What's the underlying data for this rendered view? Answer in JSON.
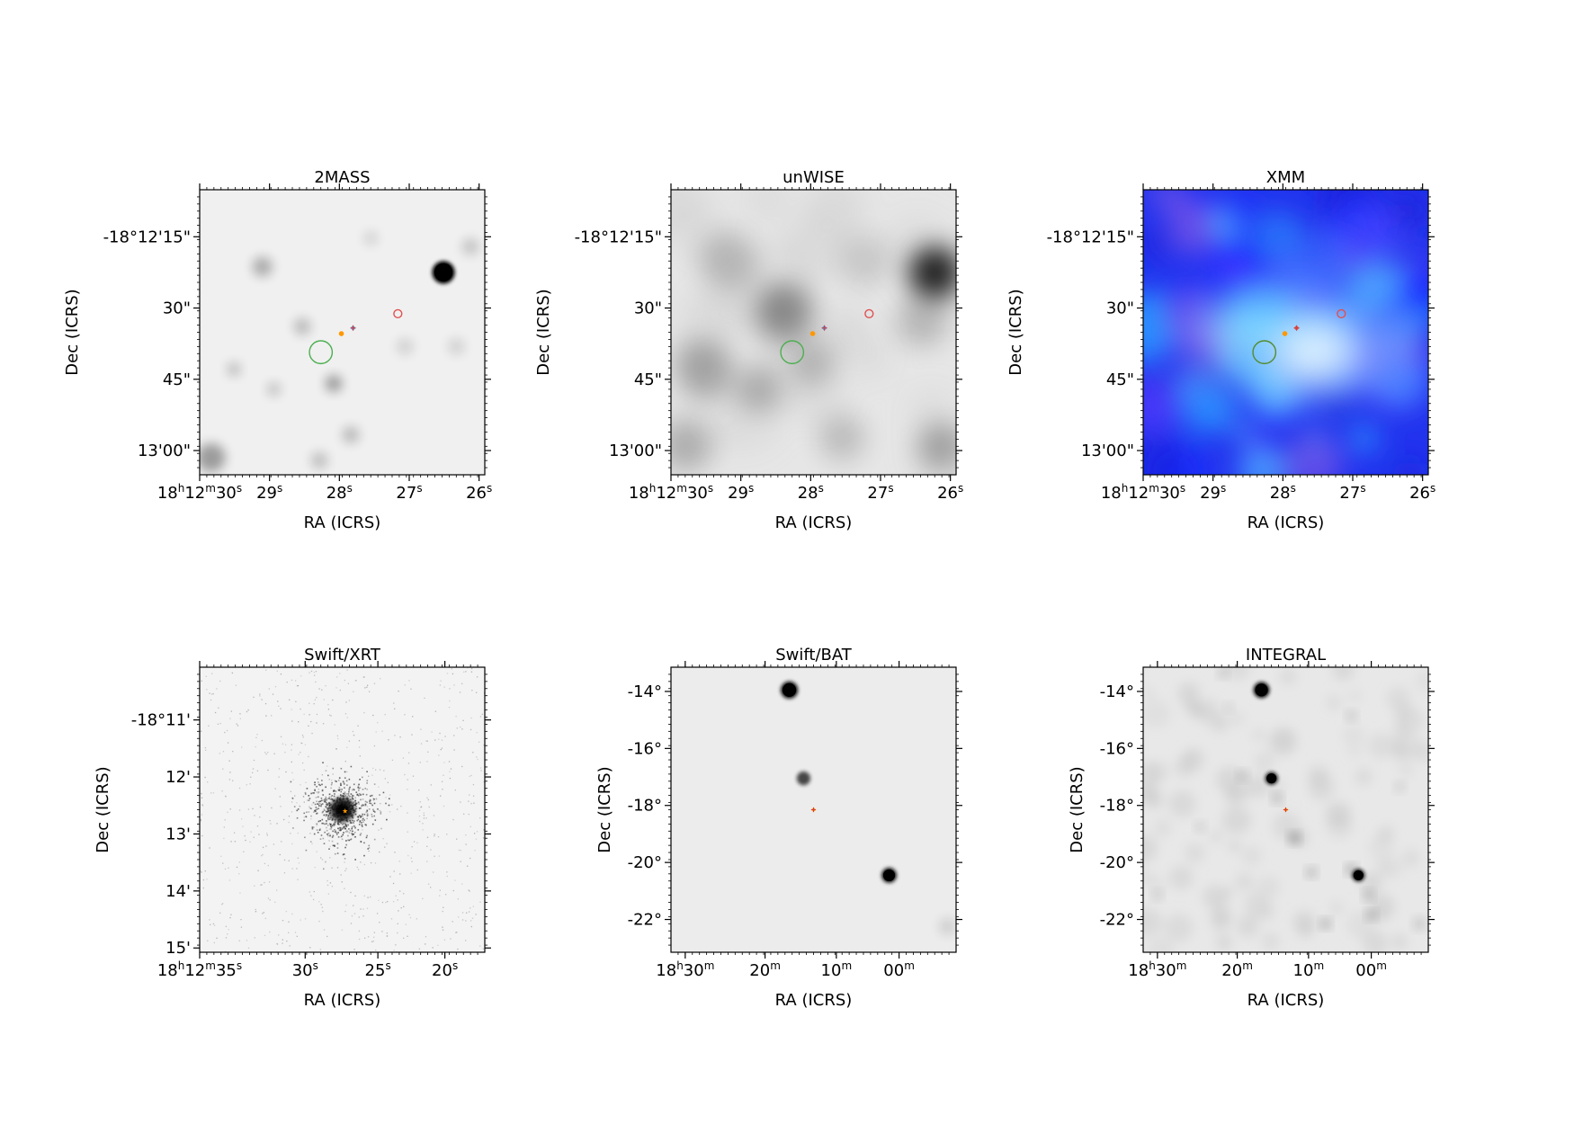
{
  "figure": {
    "panels": [
      {
        "id": "2mass",
        "title": "2MASS",
        "style": "gray",
        "xlabel": "RA (ICRS)",
        "ylabel": "Dec (ICRS)",
        "xticks": [
          {
            "f": 0.0,
            "main": "18",
            "parts": [
              [
                "h",
                "12"
              ],
              [
                "m",
                "30"
              ],
              [
                "s",
                ""
              ]
            ]
          },
          {
            "f": 0.245,
            "main": "29",
            "parts": [
              [
                "s",
                ""
              ]
            ]
          },
          {
            "f": 0.49,
            "main": "28",
            "parts": [
              [
                "s",
                ""
              ]
            ]
          },
          {
            "f": 0.735,
            "main": "27",
            "parts": [
              [
                "s",
                ""
              ]
            ]
          },
          {
            "f": 0.98,
            "main": "26",
            "parts": [
              [
                "s",
                ""
              ]
            ]
          }
        ],
        "yticks": [
          {
            "f": 0.165,
            "label": "-18°12'15\""
          },
          {
            "f": 0.415,
            "label": "30\""
          },
          {
            "f": 0.665,
            "label": "45\""
          },
          {
            "f": 0.915,
            "label": "13'00\""
          }
        ],
        "sources": [
          {
            "x": 0.855,
            "y": 0.29,
            "r": 0.04,
            "a": 1.0
          },
          {
            "x": 0.22,
            "y": 0.27,
            "r": 0.035,
            "a": 0.28
          },
          {
            "x": 0.47,
            "y": 0.68,
            "r": 0.03,
            "a": 0.35
          },
          {
            "x": 0.04,
            "y": 0.94,
            "r": 0.05,
            "a": 0.35
          },
          {
            "x": 0.36,
            "y": 0.48,
            "r": 0.03,
            "a": 0.22
          },
          {
            "x": 0.53,
            "y": 0.86,
            "r": 0.03,
            "a": 0.22
          },
          {
            "x": 0.42,
            "y": 0.95,
            "r": 0.03,
            "a": 0.2
          },
          {
            "x": 0.12,
            "y": 0.63,
            "r": 0.025,
            "a": 0.2
          },
          {
            "x": 0.26,
            "y": 0.7,
            "r": 0.025,
            "a": 0.18
          },
          {
            "x": 0.72,
            "y": 0.55,
            "r": 0.03,
            "a": 0.12
          },
          {
            "x": 0.95,
            "y": 0.2,
            "r": 0.03,
            "a": 0.18
          },
          {
            "x": 0.6,
            "y": 0.17,
            "r": 0.025,
            "a": 0.12
          },
          {
            "x": 0.9,
            "y": 0.55,
            "r": 0.03,
            "a": 0.12
          }
        ],
        "markers": [
          {
            "type": "ring",
            "color": "#4caf50",
            "x": 0.425,
            "y": 0.57,
            "r": 0.04
          },
          {
            "type": "dot",
            "color": "#ff9800",
            "x": 0.497,
            "y": 0.505,
            "r": 0.016
          },
          {
            "type": "diamond",
            "color": "#5c8fd6",
            "x": 0.538,
            "y": 0.485,
            "r": 0.016
          },
          {
            "type": "ring",
            "color": "#e05050",
            "x": 0.695,
            "y": 0.435,
            "r": 0.014
          }
        ]
      },
      {
        "id": "unwise",
        "title": "unWISE",
        "style": "gray-dense",
        "xlabel": "RA (ICRS)",
        "ylabel": "Dec (ICRS)",
        "xticks": [
          {
            "f": 0.0,
            "main": "18",
            "parts": [
              [
                "h",
                "12"
              ],
              [
                "m",
                "30"
              ],
              [
                "s",
                ""
              ]
            ]
          },
          {
            "f": 0.245,
            "main": "29",
            "parts": [
              [
                "s",
                ""
              ]
            ]
          },
          {
            "f": 0.49,
            "main": "28",
            "parts": [
              [
                "s",
                ""
              ]
            ]
          },
          {
            "f": 0.735,
            "main": "27",
            "parts": [
              [
                "s",
                ""
              ]
            ]
          },
          {
            "f": 0.98,
            "main": "26",
            "parts": [
              [
                "s",
                ""
              ]
            ]
          }
        ],
        "yticks": [
          {
            "f": 0.165,
            "label": "-18°12'15\""
          },
          {
            "f": 0.415,
            "label": "30\""
          },
          {
            "f": 0.665,
            "label": "45\""
          },
          {
            "f": 0.915,
            "label": "13'00\""
          }
        ],
        "sources": [
          {
            "x": 0.925,
            "y": 0.29,
            "r": 0.09,
            "a": 0.85
          },
          {
            "x": 0.4,
            "y": 0.43,
            "r": 0.1,
            "a": 0.38
          },
          {
            "x": 0.2,
            "y": 0.25,
            "r": 0.1,
            "a": 0.2
          },
          {
            "x": 0.12,
            "y": 0.63,
            "r": 0.1,
            "a": 0.28
          },
          {
            "x": 0.05,
            "y": 0.9,
            "r": 0.09,
            "a": 0.22
          },
          {
            "x": 0.3,
            "y": 0.7,
            "r": 0.08,
            "a": 0.2
          },
          {
            "x": 0.6,
            "y": 0.87,
            "r": 0.08,
            "a": 0.18
          },
          {
            "x": 0.88,
            "y": 0.46,
            "r": 0.09,
            "a": 0.2
          },
          {
            "x": 0.5,
            "y": 0.6,
            "r": 0.08,
            "a": 0.18
          },
          {
            "x": 0.68,
            "y": 0.25,
            "r": 0.09,
            "a": 0.12
          },
          {
            "x": 0.95,
            "y": 0.9,
            "r": 0.08,
            "a": 0.25
          }
        ],
        "markers": [
          {
            "type": "ring",
            "color": "#4caf50",
            "x": 0.425,
            "y": 0.57,
            "r": 0.04
          },
          {
            "type": "dot",
            "color": "#ff9800",
            "x": 0.497,
            "y": 0.505,
            "r": 0.016
          },
          {
            "type": "diamond",
            "color": "#5c8fd6",
            "x": 0.538,
            "y": 0.485,
            "r": 0.016
          },
          {
            "type": "ring",
            "color": "#e05050",
            "x": 0.695,
            "y": 0.435,
            "r": 0.014
          }
        ]
      },
      {
        "id": "xmm",
        "title": "XMM",
        "style": "rgb",
        "xlabel": "RA (ICRS)",
        "ylabel": "Dec (ICRS)",
        "xticks": [
          {
            "f": 0.0,
            "main": "18",
            "parts": [
              [
                "h",
                "12"
              ],
              [
                "m",
                "30"
              ],
              [
                "s",
                ""
              ]
            ]
          },
          {
            "f": 0.245,
            "main": "29",
            "parts": [
              [
                "s",
                ""
              ]
            ]
          },
          {
            "f": 0.49,
            "main": "28",
            "parts": [
              [
                "s",
                ""
              ]
            ]
          },
          {
            "f": 0.735,
            "main": "27",
            "parts": [
              [
                "s",
                ""
              ]
            ]
          },
          {
            "f": 0.98,
            "main": "26",
            "parts": [
              [
                "s",
                ""
              ]
            ]
          }
        ],
        "yticks": [
          {
            "f": 0.165,
            "label": "-18°12'15\""
          },
          {
            "f": 0.415,
            "label": "30\""
          },
          {
            "f": 0.665,
            "label": "45\""
          },
          {
            "f": 0.915,
            "label": "13'00\""
          }
        ],
        "sources": [],
        "markers": [
          {
            "type": "ring",
            "color": "#558b2f",
            "x": 0.425,
            "y": 0.57,
            "r": 0.04
          },
          {
            "type": "dot",
            "color": "#ff9800",
            "x": 0.497,
            "y": 0.505,
            "r": 0.016
          },
          {
            "type": "diamond",
            "color": "#e05050",
            "x": 0.538,
            "y": 0.485,
            "r": 0.016
          },
          {
            "type": "ring",
            "color": "#e05050",
            "x": 0.695,
            "y": 0.435,
            "r": 0.014
          }
        ]
      },
      {
        "id": "xrt",
        "title": "Swift/XRT",
        "style": "speckle",
        "xlabel": "RA (ICRS)",
        "ylabel": "Dec (ICRS)",
        "xticks": [
          {
            "f": 0.0,
            "main": "18",
            "parts": [
              [
                "h",
                "12"
              ],
              [
                "m",
                "35"
              ],
              [
                "s",
                ""
              ]
            ]
          },
          {
            "f": 0.37,
            "main": "30",
            "parts": [
              [
                "s",
                ""
              ]
            ]
          },
          {
            "f": 0.625,
            "main": "25",
            "parts": [
              [
                "s",
                ""
              ]
            ]
          },
          {
            "f": 0.86,
            "main": "20",
            "parts": [
              [
                "s",
                ""
              ]
            ]
          }
        ],
        "yticks": [
          {
            "f": 0.185,
            "label": "-18°11'"
          },
          {
            "f": 0.385,
            "label": "12'"
          },
          {
            "f": 0.585,
            "label": "13'"
          },
          {
            "f": 0.785,
            "label": "14'"
          },
          {
            "f": 0.985,
            "label": "15'"
          }
        ],
        "sources": [],
        "markers": [
          {
            "type": "star",
            "color": "#ff9800",
            "x": 0.51,
            "y": 0.505,
            "r": 0.016
          }
        ]
      },
      {
        "id": "bat",
        "title": "Swift/BAT",
        "style": "gray-light",
        "xlabel": "RA (ICRS)",
        "ylabel": "Dec (ICRS)",
        "xticks": [
          {
            "f": 0.05,
            "main": "18",
            "parts": [
              [
                "h",
                "30"
              ],
              [
                "m",
                ""
              ]
            ]
          },
          {
            "f": 0.33,
            "main": "20",
            "parts": [
              [
                "m",
                ""
              ]
            ]
          },
          {
            "f": 0.58,
            "main": "10",
            "parts": [
              [
                "m",
                ""
              ]
            ]
          },
          {
            "f": 0.8,
            "main": "00",
            "parts": [
              [
                "m",
                ""
              ]
            ]
          }
        ],
        "yticks": [
          {
            "f": 0.085,
            "label": "-14°"
          },
          {
            "f": 0.285,
            "label": "-16°"
          },
          {
            "f": 0.485,
            "label": "-18°"
          },
          {
            "f": 0.685,
            "label": "-20°"
          },
          {
            "f": 0.885,
            "label": "-22°"
          }
        ],
        "sources": [
          {
            "x": 0.415,
            "y": 0.08,
            "r": 0.03,
            "a": 1.0
          },
          {
            "x": 0.465,
            "y": 0.39,
            "r": 0.024,
            "a": 0.7
          },
          {
            "x": 0.765,
            "y": 0.73,
            "r": 0.026,
            "a": 1.0
          },
          {
            "x": 0.97,
            "y": 0.91,
            "r": 0.03,
            "a": 0.12
          }
        ],
        "markers": [
          {
            "type": "diamond",
            "color": "#ff9800",
            "x": 0.5,
            "y": 0.5,
            "r": 0.014
          }
        ]
      },
      {
        "id": "integral",
        "title": "INTEGRAL",
        "style": "gray-mottled",
        "xlabel": "RA (ICRS)",
        "ylabel": "Dec (ICRS)",
        "xticks": [
          {
            "f": 0.05,
            "main": "18",
            "parts": [
              [
                "h",
                "30"
              ],
              [
                "m",
                ""
              ]
            ]
          },
          {
            "f": 0.33,
            "main": "20",
            "parts": [
              [
                "m",
                ""
              ]
            ]
          },
          {
            "f": 0.58,
            "main": "10",
            "parts": [
              [
                "m",
                ""
              ]
            ]
          },
          {
            "f": 0.8,
            "main": "00",
            "parts": [
              [
                "m",
                ""
              ]
            ]
          }
        ],
        "yticks": [
          {
            "f": 0.085,
            "label": "-14°"
          },
          {
            "f": 0.285,
            "label": "-16°"
          },
          {
            "f": 0.485,
            "label": "-18°"
          },
          {
            "f": 0.685,
            "label": "-20°"
          },
          {
            "f": 0.885,
            "label": "-22°"
          }
        ],
        "sources": [
          {
            "x": 0.415,
            "y": 0.08,
            "r": 0.028,
            "a": 1.0
          },
          {
            "x": 0.45,
            "y": 0.39,
            "r": 0.022,
            "a": 0.95
          },
          {
            "x": 0.755,
            "y": 0.73,
            "r": 0.022,
            "a": 0.95
          },
          {
            "x": 0.73,
            "y": 0.71,
            "r": 0.016,
            "a": 0.4
          },
          {
            "x": 0.53,
            "y": 0.6,
            "r": 0.018,
            "a": 0.35
          },
          {
            "x": 0.59,
            "y": 0.72,
            "r": 0.016,
            "a": 0.3
          },
          {
            "x": 0.64,
            "y": 0.9,
            "r": 0.016,
            "a": 0.35
          },
          {
            "x": 0.79,
            "y": 0.8,
            "r": 0.016,
            "a": 0.3
          },
          {
            "x": 0.8,
            "y": 0.87,
            "r": 0.016,
            "a": 0.3
          },
          {
            "x": 0.35,
            "y": 0.38,
            "r": 0.016,
            "a": 0.25
          },
          {
            "x": 0.73,
            "y": 0.17,
            "r": 0.016,
            "a": 0.2
          },
          {
            "x": 0.3,
            "y": 0.14,
            "r": 0.014,
            "a": 0.15
          },
          {
            "x": 0.47,
            "y": 0.46,
            "r": 0.016,
            "a": 0.3
          },
          {
            "x": 0.9,
            "y": 0.42,
            "r": 0.016,
            "a": 0.15
          },
          {
            "x": 0.2,
            "y": 0.56,
            "r": 0.016,
            "a": 0.15
          },
          {
            "x": 0.05,
            "y": 0.8,
            "r": 0.016,
            "a": 0.18
          },
          {
            "x": 0.28,
            "y": 0.02,
            "r": 0.016,
            "a": 0.2
          },
          {
            "x": 0.97,
            "y": 0.9,
            "r": 0.02,
            "a": 0.18
          }
        ],
        "markers": [
          {
            "type": "diamond",
            "color": "#ff9800",
            "x": 0.5,
            "y": 0.5,
            "r": 0.014
          }
        ]
      }
    ]
  }
}
